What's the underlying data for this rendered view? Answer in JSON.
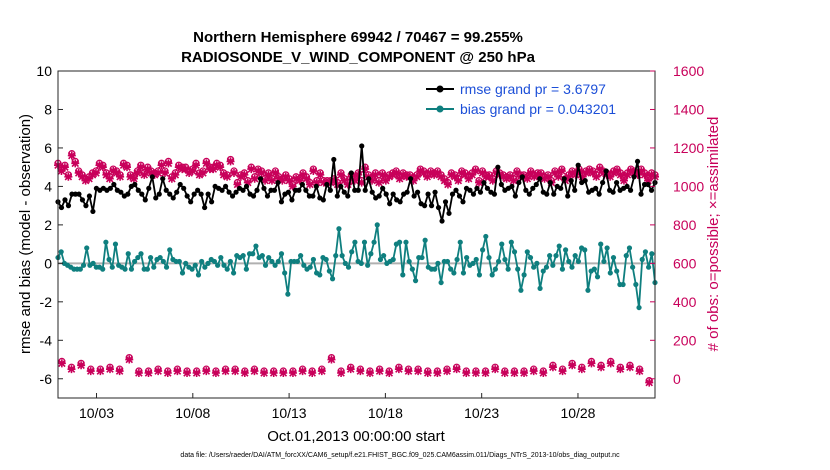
{
  "chart_data": {
    "type": "line",
    "title_line1": "Northern Hemisphere 69942 / 70467 = 99.255%",
    "title_line2": "RADIOSONDE_V_WIND_COMPONENT @ 250 hPa",
    "ylabel_left": "rmse and bias (model - observation)",
    "ylabel_right": "# of obs: o=possible; ×=assimilated",
    "xlabel": "Oct.01,2013 00:00:00 start",
    "footnote": "data file: /Users/raeder/DAI/ATM_forcXX/CAM6_setup/f.e21.FHIST_BGC.f09_025.CAM6assim.011/Diags_NTrS_2013-10/obs_diag_output.nc",
    "xlim": [
      1,
      32
    ],
    "ylim_left": [
      -7,
      10
    ],
    "ylim_right": [
      -100,
      1600
    ],
    "yticks_left": [
      -6,
      -4,
      -2,
      0,
      2,
      4,
      6,
      8,
      10
    ],
    "yticks_right": [
      0,
      200,
      400,
      600,
      800,
      1000,
      1200,
      1400,
      1600
    ],
    "xticks": [
      {
        "day": 3,
        "label": "10/03"
      },
      {
        "day": 8,
        "label": "10/08"
      },
      {
        "day": 13,
        "label": "10/13"
      },
      {
        "day": 18,
        "label": "10/18"
      },
      {
        "day": 23,
        "label": "10/23"
      },
      {
        "day": 28,
        "label": "10/28"
      }
    ],
    "legend": [
      {
        "label": "rmse grand pr = 3.6797",
        "color": "#000000"
      },
      {
        "label": "bias grand pr = 0.043201",
        "color": "#0f7f7f"
      }
    ],
    "colors": {
      "rmse": "#000000",
      "bias": "#0f7f7f",
      "obs": "#c8005a",
      "zero": "#b0b0b0"
    },
    "series": [
      {
        "name": "rmse",
        "values": [
          3.2,
          2.9,
          3.3,
          3.0,
          3.6,
          3.6,
          3.6,
          3.3,
          3.0,
          3.5,
          2.7,
          3.9,
          3.8,
          3.9,
          3.8,
          3.9,
          4.1,
          3.8,
          3.7,
          3.5,
          3.6,
          4.0,
          4.1,
          3.8,
          3.6,
          3.3,
          3.9,
          4.5,
          3.4,
          3.6,
          4.4,
          3.8,
          3.6,
          3.4,
          3.7,
          4.1,
          3.9,
          3.5,
          3.2,
          3.6,
          3.8,
          3.6,
          2.9,
          3.6,
          3.2,
          4.0,
          3.9,
          3.8,
          4.0,
          3.7,
          3.5,
          3.7,
          3.9,
          3.8,
          4.0,
          3.6,
          3.5,
          3.8,
          4.4,
          3.9,
          3.5,
          3.8,
          3.8,
          4.2,
          3.2,
          3.6,
          3.7,
          3.3,
          3.8,
          3.8,
          4.1,
          3.8,
          3.5,
          3.5,
          4.0,
          3.4,
          3.3,
          4.1,
          3.8,
          5.4,
          3.5,
          4.0,
          3.7,
          3.5,
          4.7,
          3.8,
          3.8,
          6.1,
          3.8,
          4.4,
          3.7,
          3.4,
          3.5,
          3.9,
          3.6,
          3.1,
          3.6,
          3.3,
          3.2,
          3.6,
          3.7,
          4.4,
          3.5,
          3.7,
          3.1,
          3.0,
          3.6,
          3.0,
          3.7,
          2.9,
          2.2,
          3.2,
          2.6,
          3.6,
          3.8,
          3.5,
          3.2,
          3.9,
          3.8,
          3.6,
          3.9,
          3.7,
          4.2,
          3.9,
          3.7,
          3.6,
          5.0,
          4.1,
          3.8,
          3.9,
          4.0,
          3.5,
          4.2,
          4.5,
          3.8,
          3.6,
          3.9,
          4.1,
          4.4,
          3.7,
          3.6,
          4.2,
          3.6,
          4.0,
          3.9,
          4.4,
          3.5,
          4.3,
          3.8,
          5.1,
          4.2,
          4.3,
          3.7,
          3.8,
          3.9,
          3.6,
          4.2,
          4.8,
          3.8,
          3.7,
          4.2,
          3.8,
          3.9,
          4.0,
          3.8,
          4.5,
          5.3,
          3.6,
          4.1,
          4.1,
          3.8,
          4.2
        ]
      },
      {
        "name": "bias",
        "values": [
          0.3,
          0.6,
          0.0,
          -0.1,
          -0.2,
          -0.3,
          -0.3,
          -0.3,
          -0.1,
          0.8,
          -0.1,
          0.0,
          -0.2,
          -0.2,
          -0.3,
          1.1,
          0.2,
          -0.2,
          1.0,
          -0.1,
          -0.2,
          -0.3,
          0.5,
          -0.3,
          0.1,
          0.3,
          0.5,
          -0.3,
          -0.3,
          0.3,
          -0.2,
          0.2,
          0.3,
          0.1,
          -0.2,
          0.7,
          0.2,
          0.1,
          0.1,
          -0.5,
          0.0,
          -0.2,
          -0.3,
          -0.1,
          -0.6,
          0.1,
          -0.2,
          0.0,
          0.2,
          0.1,
          -0.1,
          0.3,
          -0.1,
          -0.3,
          0.1,
          -0.5,
          0.4,
          0.3,
          0.4,
          -0.3,
          0.5,
          0.5,
          0.9,
          0.3,
          0.4,
          -0.1,
          0.3,
          0.1,
          -0.1,
          0.1,
          0.5,
          -0.5,
          -1.6,
          0.1,
          0.1,
          0.1,
          0.4,
          -0.1,
          -0.3,
          -0.2,
          0.2,
          -0.5,
          -0.6,
          0.3,
          0.2,
          -0.4,
          -0.8,
          0.4,
          1.8,
          0.4,
          0.0,
          -0.2,
          0.6,
          1.1,
          0.1,
          0.0,
          1.1,
          -0.1,
          0.5,
          1.1,
          2.0,
          0.2,
          0.4,
          0.0,
          0.1,
          0.2,
          1.0,
          1.1,
          -0.6,
          1.1,
          0.1,
          -0.3,
          -0.9,
          0.3,
          0.3,
          1.2,
          -0.2,
          -0.3,
          -0.3,
          0.0,
          -1.0,
          0.1,
          0.1,
          -0.3,
          -0.5,
          0.2,
          1.1,
          -0.5,
          0.3,
          -0.1,
          0.0,
          0.2,
          -0.6,
          0.7,
          1.4,
          0.3,
          -0.6,
          -0.3,
          0.1,
          1.0,
          0.2,
          -0.3,
          1.1,
          0.6,
          -0.3,
          -1.4,
          -0.6,
          0.6,
          0.3,
          -0.2,
          0.0,
          -1.3,
          -0.4,
          -0.2,
          0.4,
          -0.1,
          0.4,
          0.9,
          -0.3,
          0.7,
          0.1,
          -0.2,
          0.4,
          0.1,
          0.8,
          0.7,
          -1.4,
          -0.4,
          -0.3,
          -0.7,
          1.0,
          0.1,
          0.8,
          -0.5,
          0.3,
          -0.4,
          -1.1,
          -1.1,
          0.4,
          0.8,
          -0.2,
          -1.1,
          -2.3,
          0.2,
          0.6,
          -0.2,
          0.5,
          -1.0
        ]
      },
      {
        "name": "obs_possible",
        "values": [
          1120,
          1090,
          1110,
          1060,
          1170,
          1130,
          1080,
          1060,
          1040,
          1050,
          1070,
          1080,
          1120,
          1110,
          1070,
          1050,
          1090,
          1080,
          1060,
          1120,
          1110,
          1060,
          1050,
          1080,
          1110,
          1070,
          1100,
          1080,
          1070,
          1080,
          1120,
          1080,
          1130,
          1050,
          1070,
          1110,
          1100,
          1100,
          1080,
          1090,
          1120,
          1070,
          1080,
          1130,
          1100,
          1100,
          1120,
          1110,
          1070,
          1060,
          1140,
          1080,
          1020,
          1060,
          1070,
          1030,
          1100,
          1050,
          1090,
          1080,
          1040,
          1070,
          1040,
          1080,
          1050,
          1040,
          1060,
          1040,
          1010,
          1050,
          1040,
          1070,
          1050,
          1020,
          1090,
          1030,
          1070,
          1030,
          1030,
          1030,
          1040,
          1020,
          1070,
          1040,
          1020,
          1060,
          1040,
          1070,
          1030,
          1100,
          1060,
          1040,
          1070,
          1030,
          1070,
          1040,
          1060,
          1070,
          1080,
          1050,
          1070,
          1060,
          1060,
          1040,
          1060,
          1090,
          1080,
          1060,
          1080,
          1070,
          1080,
          1060,
          1040,
          1020,
          1070,
          1060,
          1040,
          1080,
          1070,
          1050,
          1070,
          1090,
          1030,
          1080,
          1060,
          1060,
          1040,
          1080,
          1070,
          1060,
          1050,
          1060,
          1040,
          1080,
          1060,
          1060,
          1050,
          1080,
          1060,
          1070,
          1070,
          1050,
          1060,
          1030,
          1080,
          1060,
          1090,
          1040,
          1060,
          1080,
          1070,
          1090,
          1060,
          1080,
          1090,
          1080,
          1060,
          1100,
          1080,
          1070,
          1060,
          1080,
          1090,
          1070,
          1040,
          1070,
          1090,
          1080,
          1070,
          1090,
          1070,
          1040,
          1070,
          1060
        ]
      },
      {
        "name": "obs_assimilated",
        "values": [
          1110,
          1080,
          1100,
          1050,
          1160,
          1120,
          1070,
          1050,
          1030,
          1040,
          1060,
          1070,
          1110,
          1100,
          1060,
          1040,
          1080,
          1070,
          1050,
          1110,
          1100,
          1050,
          1040,
          1070,
          1100,
          1060,
          1090,
          1070,
          1060,
          1070,
          1110,
          1070,
          1120,
          1040,
          1060,
          1100,
          1090,
          1090,
          1070,
          1080,
          1110,
          1060,
          1070,
          1120,
          1090,
          1090,
          1110,
          1100,
          1060,
          1050,
          1130,
          1070,
          1010,
          1050,
          1060,
          1020,
          1090,
          1040,
          1080,
          1070,
          1030,
          1060,
          1030,
          1070,
          1040,
          1030,
          1050,
          1030,
          1000,
          1040,
          1030,
          1060,
          1040,
          1010,
          1080,
          1020,
          1060,
          1020,
          1020,
          1020,
          1030,
          1010,
          1060,
          1030,
          1010,
          1050,
          1030,
          1060,
          1020,
          1090,
          1050,
          1030,
          1060,
          1020,
          1060,
          1030,
          1050,
          1060,
          1070,
          1040,
          1060,
          1050,
          1050,
          1030,
          1050,
          1080,
          1070,
          1050,
          1070,
          1060,
          1070,
          1050,
          1030,
          1010,
          1060,
          1050,
          1030,
          1070,
          1060,
          1040,
          1060,
          1080,
          1020,
          1070,
          1050,
          1050,
          1030,
          1070,
          1060,
          1050,
          1040,
          1050,
          1030,
          1070,
          1050,
          1050,
          1040,
          1070,
          1050,
          1060,
          1060,
          1040,
          1050,
          1020,
          1070,
          1050,
          1080,
          1030,
          1050,
          1070,
          1060,
          1080,
          1050,
          1070,
          1080,
          1070,
          1050,
          1090,
          1070,
          1060,
          1050,
          1070,
          1080,
          1060,
          1030,
          1060,
          1080,
          1070,
          1060,
          1080,
          1060,
          1030,
          1060,
          1050
        ]
      },
      {
        "name": "obs_daily_possible",
        "x": [
          1.2,
          1.7,
          2.2,
          2.7,
          3.2,
          3.7,
          4.2,
          4.7,
          5.2,
          5.7,
          6.2,
          6.7,
          7.2,
          7.7,
          8.2,
          8.7,
          9.2,
          9.7,
          10.2,
          10.7,
          11.2,
          11.7,
          12.2,
          12.7,
          13.2,
          13.7,
          14.2,
          14.7,
          15.2,
          15.7,
          16.2,
          16.7,
          17.2,
          17.7,
          18.2,
          18.7,
          19.2,
          19.7,
          20.2,
          20.7,
          21.2,
          21.7,
          22.2,
          22.7,
          23.2,
          23.7,
          24.2,
          24.7,
          25.2,
          25.7,
          26.2,
          26.7,
          27.2,
          27.7,
          28.2,
          28.7,
          29.2,
          29.7,
          30.2,
          30.7,
          31.2,
          31.7
        ],
        "values": [
          90,
          60,
          80,
          50,
          50,
          60,
          50,
          110,
          40,
          40,
          50,
          40,
          50,
          40,
          40,
          50,
          40,
          50,
          50,
          40,
          50,
          40,
          40,
          40,
          40,
          50,
          40,
          50,
          110,
          40,
          60,
          50,
          40,
          50,
          40,
          60,
          50,
          50,
          40,
          40,
          50,
          60,
          40,
          40,
          40,
          60,
          40,
          40,
          40,
          50,
          40,
          70,
          50,
          80,
          60,
          90,
          70,
          90,
          60,
          70,
          50,
          -10
        ]
      },
      {
        "name": "obs_daily_assimilated",
        "x": [
          1.2,
          1.7,
          2.2,
          2.7,
          3.2,
          3.7,
          4.2,
          4.7,
          5.2,
          5.7,
          6.2,
          6.7,
          7.2,
          7.7,
          8.2,
          8.7,
          9.2,
          9.7,
          10.2,
          10.7,
          11.2,
          11.7,
          12.2,
          12.7,
          13.2,
          13.7,
          14.2,
          14.7,
          15.2,
          15.7,
          16.2,
          16.7,
          17.2,
          17.7,
          18.2,
          18.7,
          19.2,
          19.7,
          20.2,
          20.7,
          21.2,
          21.7,
          22.2,
          22.7,
          23.2,
          23.7,
          24.2,
          24.7,
          25.2,
          25.7,
          26.2,
          26.7,
          27.2,
          27.7,
          28.2,
          28.7,
          29.2,
          29.7,
          30.2,
          30.7,
          31.2,
          31.7
        ],
        "values": [
          80,
          50,
          70,
          40,
          40,
          50,
          40,
          100,
          30,
          30,
          40,
          30,
          40,
          30,
          30,
          40,
          30,
          40,
          40,
          30,
          40,
          30,
          30,
          30,
          30,
          40,
          30,
          40,
          100,
          30,
          50,
          40,
          30,
          40,
          30,
          50,
          40,
          40,
          30,
          30,
          40,
          50,
          30,
          30,
          30,
          50,
          30,
          30,
          30,
          40,
          30,
          60,
          40,
          70,
          50,
          80,
          60,
          80,
          50,
          60,
          40,
          -20
        ]
      }
    ]
  }
}
